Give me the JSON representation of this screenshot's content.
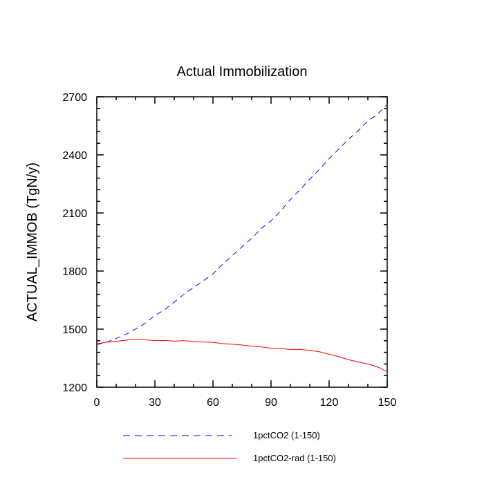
{
  "chart_data": {
    "type": "line",
    "title": "Actual Immobilization",
    "xlabel": "",
    "ylabel": "ACTUAL_IMMOB  (TgN/y)",
    "xlim": [
      0,
      150
    ],
    "ylim": [
      1200,
      2700
    ],
    "x_ticks": [
      0,
      30,
      60,
      90,
      120,
      150
    ],
    "y_ticks": [
      1200,
      1500,
      1800,
      2100,
      2400,
      2700
    ],
    "x_tick_labels": [
      "0",
      "30",
      "60",
      "90",
      "120",
      "150"
    ],
    "y_tick_labels": [
      "1200",
      "1500",
      "1800",
      "2100",
      "2400",
      "2700"
    ],
    "grid": false,
    "legend_position": "bottom",
    "series": [
      {
        "name": "1pctCO2 (1-150)",
        "color": "#0000ff",
        "dash": "dashed",
        "x": [
          0,
          5,
          10,
          15,
          20,
          25,
          30,
          35,
          40,
          45,
          50,
          55,
          60,
          65,
          70,
          75,
          80,
          85,
          90,
          95,
          100,
          105,
          110,
          115,
          120,
          125,
          130,
          135,
          140,
          145,
          150
        ],
        "y": [
          1420,
          1432,
          1452,
          1473,
          1500,
          1530,
          1570,
          1600,
          1640,
          1680,
          1715,
          1750,
          1785,
          1835,
          1880,
          1925,
          1970,
          2020,
          2060,
          2110,
          2170,
          2220,
          2275,
          2325,
          2380,
          2430,
          2480,
          2525,
          2575,
          2610,
          2660
        ]
      },
      {
        "name": "1pctCO2-rad (1-150)",
        "color": "#ff0000",
        "dash": "solid",
        "x": [
          0,
          5,
          10,
          15,
          20,
          25,
          30,
          35,
          40,
          45,
          50,
          55,
          60,
          65,
          70,
          75,
          80,
          85,
          90,
          95,
          100,
          105,
          110,
          115,
          120,
          125,
          130,
          135,
          140,
          145,
          150
        ],
        "y": [
          1425,
          1432,
          1437,
          1443,
          1447,
          1445,
          1440,
          1442,
          1438,
          1440,
          1436,
          1433,
          1432,
          1425,
          1422,
          1418,
          1412,
          1408,
          1402,
          1400,
          1395,
          1395,
          1390,
          1383,
          1370,
          1358,
          1342,
          1330,
          1320,
          1305,
          1280
        ]
      }
    ]
  }
}
